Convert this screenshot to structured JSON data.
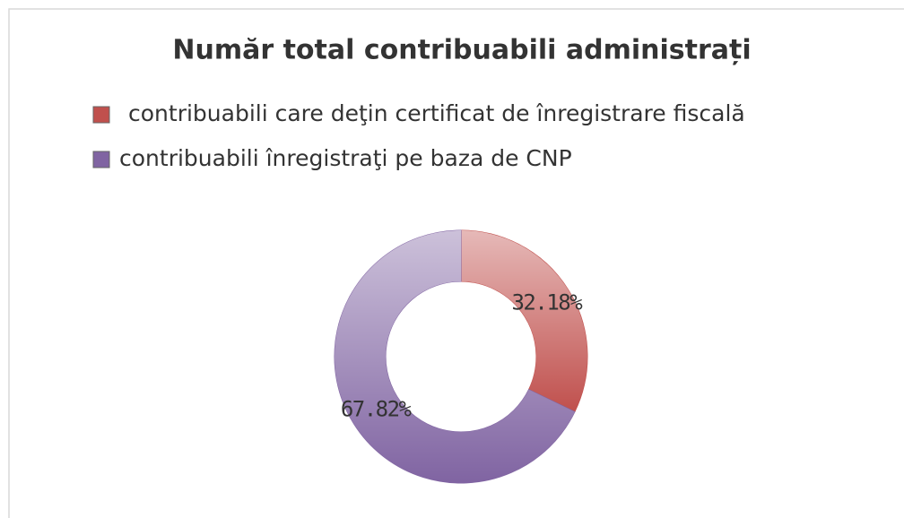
{
  "chart_data": {
    "type": "donut",
    "title": "Număr total contribuabili administrați",
    "categories": [
      "contribuabili care deţin certificat de înregistrare fiscală",
      "contribuabili înregistraţi pe baza de CNP"
    ],
    "values": [
      32.18,
      67.82
    ],
    "value_labels": [
      "32.18%",
      "67.82%"
    ],
    "colors": [
      "#c0504d",
      "#8064a2"
    ],
    "legend": "top"
  }
}
